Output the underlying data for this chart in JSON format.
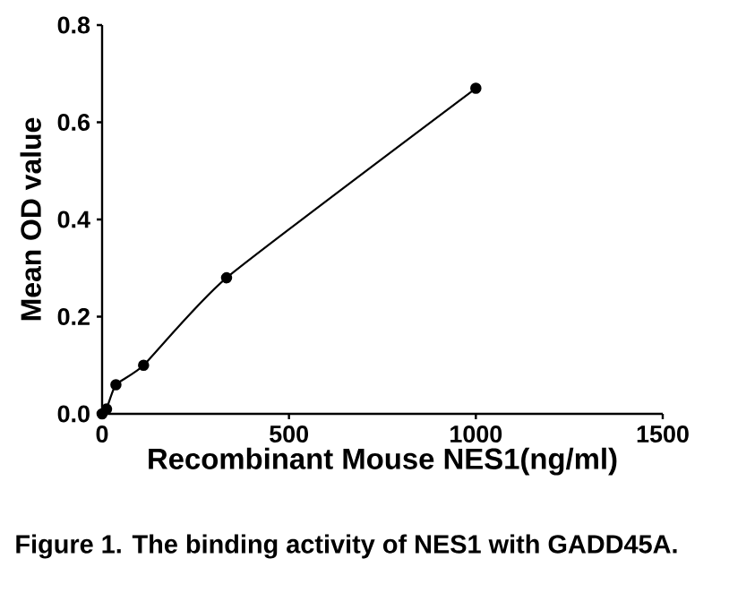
{
  "chart_data": {
    "type": "line",
    "xlabel": "Recombinant Mouse NES1(ng/ml)",
    "ylabel": "Mean OD value",
    "annotations": [
      "Figure 1. The binding activity of NES1 with GADD45A."
    ],
    "x": [
      0,
      12,
      37,
      111,
      333,
      1000
    ],
    "series": [
      {
        "color": "#000000",
        "values": [
          0.0,
          0.01,
          0.06,
          0.1,
          0.28,
          0.67
        ]
      }
    ],
    "marker": "circle",
    "line_style": "solid",
    "grid": false,
    "xlim": [
      0,
      1500
    ],
    "ylim": [
      0,
      0.8
    ],
    "xticks": [
      0,
      500,
      1000,
      1500
    ],
    "yticks": [
      {
        "value": 0,
        "label": "0.0"
      },
      {
        "value": 0.2,
        "label": "0.2"
      },
      {
        "value": 0.4,
        "label": "0.4"
      },
      {
        "value": 0.6,
        "label": "0.6"
      },
      {
        "value": 0.8,
        "label": "0.8"
      }
    ]
  }
}
